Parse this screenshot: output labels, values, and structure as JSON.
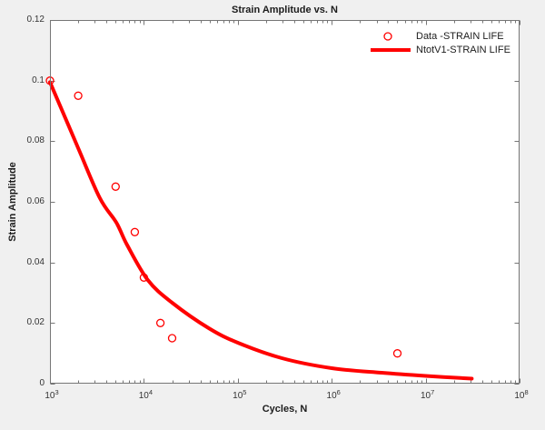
{
  "title": "Strain Amplitude vs. N",
  "axes": {
    "xlabel": "Cycles, N",
    "ylabel": "Strain Amplitude",
    "x_tick_exponents": [
      3,
      4,
      5,
      6,
      7,
      8
    ],
    "x_tick_base": "10",
    "y_tick_labels": [
      "0",
      "0.02",
      "0.04",
      "0.06",
      "0.08",
      "0.1",
      "0.12"
    ],
    "y_tick_values": [
      0,
      0.02,
      0.04,
      0.06,
      0.08,
      0.1,
      0.12
    ]
  },
  "legend": {
    "items": [
      {
        "label": "Data -STRAIN LIFE",
        "swatch": "open-circle-marker"
      },
      {
        "label": "NtotV1-STRAIN LIFE",
        "swatch": "thick-line"
      }
    ]
  },
  "colors": {
    "series": "#ff0000",
    "figure_bg": "#f0f0f0",
    "plot_bg": "#ffffff",
    "axis": "#767676",
    "tick_label": "#333333",
    "text": "#1c1c1c"
  },
  "chart_data": {
    "type": "scatter",
    "title": "Strain Amplitude vs. N",
    "xlabel": "Cycles, N",
    "ylabel": "Strain Amplitude",
    "x_scale": "log10",
    "xlim": [
      1000,
      100000000
    ],
    "ylim": [
      0,
      0.12
    ],
    "grid": false,
    "legend_position": "top-right-inside",
    "series": [
      {
        "name": "Data -STRAIN LIFE",
        "type": "scatter",
        "marker": "open-circle",
        "color": "#ff0000",
        "points": [
          [
            1000,
            0.1
          ],
          [
            2000,
            0.095
          ],
          [
            5000,
            0.065
          ],
          [
            8000,
            0.05
          ],
          [
            10000,
            0.035
          ],
          [
            15000,
            0.02
          ],
          [
            20000,
            0.015
          ],
          [
            5000000,
            0.01
          ]
        ]
      },
      {
        "name": "NtotV1-STRAIN LIFE",
        "type": "line",
        "color": "#ff0000",
        "line_width": 4,
        "points": [
          [
            1000,
            0.0995
          ],
          [
            2000,
            0.0777
          ],
          [
            3400,
            0.0612
          ],
          [
            5100,
            0.0531
          ],
          [
            6600,
            0.0459
          ],
          [
            11000,
            0.0342
          ],
          [
            20000,
            0.0267
          ],
          [
            49000,
            0.0183
          ],
          [
            100000,
            0.0135
          ],
          [
            295000,
            0.0084
          ],
          [
            1000000,
            0.0051
          ],
          [
            3400000,
            0.0036
          ],
          [
            10000000,
            0.00255
          ],
          [
            31000000,
            0.00165
          ]
        ]
      }
    ]
  }
}
